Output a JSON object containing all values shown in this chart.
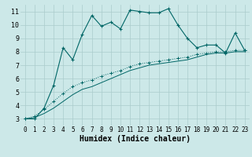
{
  "title": "",
  "xlabel": "Humidex (Indice chaleur)",
  "bg_color": "#cce8e8",
  "line_color": "#006666",
  "grid_color": "#aacccc",
  "xlim": [
    -0.5,
    23.5
  ],
  "ylim": [
    2.5,
    11.5
  ],
  "yticks": [
    3,
    4,
    5,
    6,
    7,
    8,
    9,
    10,
    11
  ],
  "xticks": [
    0,
    1,
    2,
    3,
    4,
    5,
    6,
    7,
    8,
    9,
    10,
    11,
    12,
    13,
    14,
    15,
    16,
    17,
    18,
    19,
    20,
    21,
    22,
    23
  ],
  "line1_x": [
    0,
    1,
    2,
    3,
    4,
    5,
    6,
    7,
    8,
    9,
    10,
    11,
    12,
    13,
    14,
    15,
    16,
    17,
    18,
    19,
    20,
    21,
    22,
    23
  ],
  "line1_y": [
    3.0,
    3.0,
    3.8,
    5.5,
    8.3,
    7.4,
    9.3,
    10.7,
    9.9,
    10.2,
    9.7,
    11.1,
    11.0,
    10.9,
    10.9,
    11.2,
    10.0,
    9.0,
    8.3,
    8.5,
    8.5,
    7.9,
    9.4,
    8.1
  ],
  "line2_x": [
    0,
    1,
    2,
    3,
    4,
    5,
    6,
    7,
    8,
    9,
    10,
    11,
    12,
    13,
    14,
    15,
    16,
    17,
    18,
    19,
    20,
    21,
    22,
    23
  ],
  "line2_y": [
    3.0,
    3.2,
    3.7,
    4.3,
    4.9,
    5.4,
    5.7,
    5.9,
    6.2,
    6.4,
    6.6,
    6.9,
    7.1,
    7.2,
    7.3,
    7.4,
    7.5,
    7.6,
    7.8,
    7.9,
    8.0,
    8.0,
    8.1,
    8.1
  ],
  "line3_x": [
    0,
    1,
    2,
    3,
    4,
    5,
    6,
    7,
    8,
    9,
    10,
    11,
    12,
    13,
    14,
    15,
    16,
    17,
    18,
    19,
    20,
    21,
    22,
    23
  ],
  "line3_y": [
    3.0,
    3.1,
    3.4,
    3.8,
    4.3,
    4.8,
    5.2,
    5.4,
    5.7,
    6.0,
    6.3,
    6.6,
    6.8,
    7.0,
    7.1,
    7.2,
    7.3,
    7.4,
    7.6,
    7.8,
    7.9,
    7.9,
    8.0,
    8.0
  ],
  "tick_fontsize": 6,
  "xlabel_fontsize": 7
}
